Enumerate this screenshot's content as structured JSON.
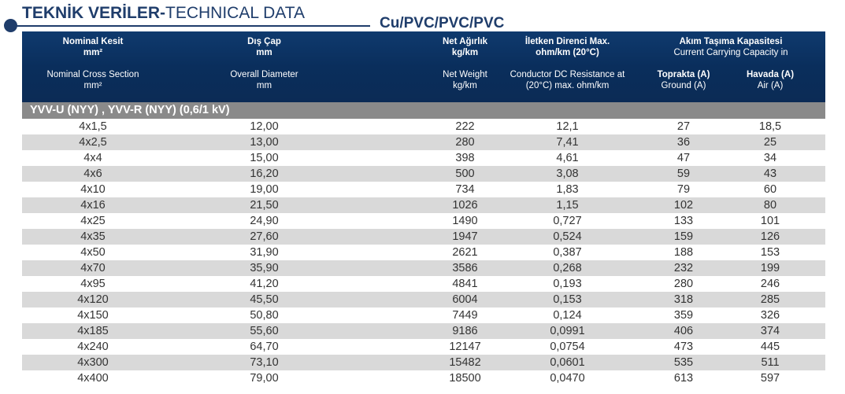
{
  "title": {
    "bold": "TEKNİK VERİLER-",
    "normal": "TECHNICAL DATA"
  },
  "material": "Cu/PVC/PVC/PVC",
  "header": {
    "col1": {
      "tr": "Nominal Kesit",
      "tr_unit": "mm²",
      "en": "Nominal Cross Section",
      "en_unit": "mm²"
    },
    "col2": {
      "tr": "Dış Çap",
      "tr_unit": "mm",
      "en": "Overall Diameter",
      "en_unit": "mm"
    },
    "col3": {
      "tr": "Net Ağırlık",
      "tr_unit": "kg/km",
      "en": "Net Weight",
      "en_unit": "kg/km"
    },
    "col4": {
      "tr": "İletken Direnci Max.",
      "tr_unit": "ohm/km (20°C)",
      "en": "Conductor DC Resistance at",
      "en_unit": "(20°C) max. ohm/km"
    },
    "col5": {
      "tr": "Akım Taşıma Kapasitesi",
      "en": "Current Carrying Capacity in"
    },
    "col5a": {
      "tr": "Toprakta (A)",
      "en": "Ground (A)"
    },
    "col5b": {
      "tr": "Havada (A)",
      "en": "Air (A)"
    }
  },
  "section": "YVV-U (NYY) , YVV-R (NYY) (0,6/1 kV)",
  "rows": [
    [
      "4x1,5",
      "12,00",
      "222",
      "12,1",
      "27",
      "18,5"
    ],
    [
      "4x2,5",
      "13,00",
      "280",
      "7,41",
      "36",
      "25"
    ],
    [
      "4x4",
      "15,00",
      "398",
      "4,61",
      "47",
      "34"
    ],
    [
      "4x6",
      "16,20",
      "500",
      "3,08",
      "59",
      "43"
    ],
    [
      "4x10",
      "19,00",
      "734",
      "1,83",
      "79",
      "60"
    ],
    [
      "4x16",
      "21,50",
      "1026",
      "1,15",
      "102",
      "80"
    ],
    [
      "4x25",
      "24,90",
      "1490",
      "0,727",
      "133",
      "101"
    ],
    [
      "4x35",
      "27,60",
      "1947",
      "0,524",
      "159",
      "126"
    ],
    [
      "4x50",
      "31,90",
      "2621",
      "0,387",
      "188",
      "153"
    ],
    [
      "4x70",
      "35,90",
      "3586",
      "0,268",
      "232",
      "199"
    ],
    [
      "4x95",
      "41,20",
      "4841",
      "0,193",
      "280",
      "246"
    ],
    [
      "4x120",
      "45,50",
      "6004",
      "0,153",
      "318",
      "285"
    ],
    [
      "4x150",
      "50,80",
      "7449",
      "0,124",
      "359",
      "326"
    ],
    [
      "4x185",
      "55,60",
      "9186",
      "0,0991",
      "406",
      "374"
    ],
    [
      "4x240",
      "64,70",
      "12147",
      "0,0754",
      "473",
      "445"
    ],
    [
      "4x300",
      "73,10",
      "15482",
      "0,0601",
      "535",
      "511"
    ],
    [
      "4x400",
      "79,00",
      "18500",
      "0,0470",
      "613",
      "597"
    ]
  ],
  "colors": {
    "navy": "#0a2e5c",
    "section_gray": "#8a8a8a",
    "stripe": "#d9d9d9"
  }
}
